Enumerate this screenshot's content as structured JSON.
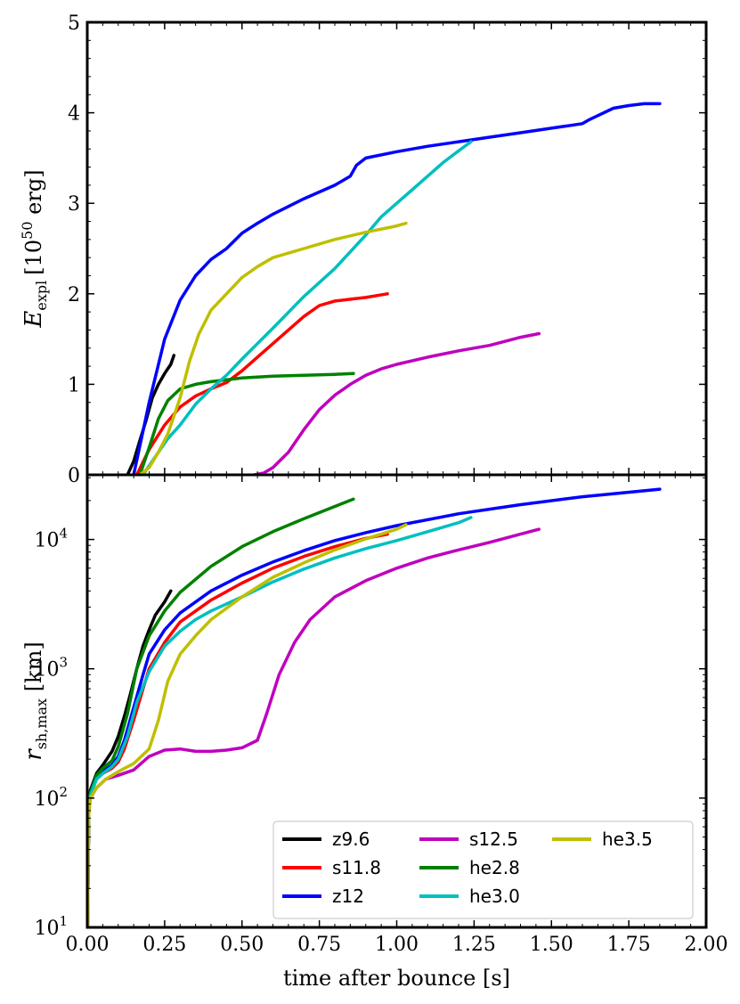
{
  "chart_data": [
    {
      "type": "line",
      "panel": "top",
      "ylabel": "E_expl [10^50 erg]",
      "ylabel_parts": {
        "symbol": "E",
        "subscript": "expl",
        "unit_pre": "[10",
        "unit_exp": "50",
        "unit_post": " erg]"
      },
      "xlim": [
        0,
        2
      ],
      "ylim": [
        0,
        5
      ],
      "yscale": "linear",
      "yticks": [
        "0",
        "1",
        "2",
        "3",
        "4",
        "5"
      ],
      "ytick_values": [
        0,
        1,
        2,
        3,
        4,
        5
      ],
      "series": [
        {
          "name": "z9.6",
          "color": "#000000",
          "x": [
            0.13,
            0.15,
            0.17,
            0.19,
            0.21,
            0.23,
            0.25,
            0.27,
            0.28
          ],
          "y": [
            0.0,
            0.15,
            0.38,
            0.6,
            0.85,
            1.0,
            1.12,
            1.22,
            1.32
          ]
        },
        {
          "name": "s11.8",
          "color": "#ff0000",
          "x": [
            0.16,
            0.2,
            0.25,
            0.3,
            0.35,
            0.4,
            0.45,
            0.5,
            0.55,
            0.6,
            0.65,
            0.7,
            0.75,
            0.8,
            0.85,
            0.9,
            0.97
          ],
          "y": [
            0.0,
            0.28,
            0.55,
            0.75,
            0.87,
            0.95,
            1.02,
            1.15,
            1.3,
            1.45,
            1.6,
            1.75,
            1.87,
            1.92,
            1.94,
            1.96,
            2.0
          ]
        },
        {
          "name": "z12",
          "color": "#0000ff",
          "x": [
            0.15,
            0.2,
            0.25,
            0.3,
            0.35,
            0.4,
            0.45,
            0.5,
            0.55,
            0.6,
            0.7,
            0.8,
            0.85,
            0.87,
            0.9,
            1.0,
            1.1,
            1.2,
            1.3,
            1.4,
            1.5,
            1.6,
            1.62,
            1.7,
            1.75,
            1.8,
            1.85
          ],
          "y": [
            0.0,
            0.8,
            1.5,
            1.93,
            2.2,
            2.38,
            2.5,
            2.67,
            2.78,
            2.88,
            3.05,
            3.2,
            3.3,
            3.42,
            3.5,
            3.57,
            3.63,
            3.68,
            3.73,
            3.78,
            3.83,
            3.88,
            3.92,
            4.05,
            4.08,
            4.1,
            4.1
          ]
        },
        {
          "name": "s12.5",
          "color": "#bf00bf",
          "x": [
            0.54,
            0.57,
            0.6,
            0.65,
            0.7,
            0.75,
            0.8,
            0.85,
            0.9,
            0.95,
            1.0,
            1.1,
            1.2,
            1.3,
            1.4,
            1.46
          ],
          "y": [
            0.0,
            0.02,
            0.08,
            0.25,
            0.5,
            0.72,
            0.88,
            1.0,
            1.1,
            1.17,
            1.22,
            1.3,
            1.37,
            1.43,
            1.52,
            1.56
          ]
        },
        {
          "name": "he2.8",
          "color": "#008000",
          "x": [
            0.17,
            0.2,
            0.23,
            0.26,
            0.3,
            0.35,
            0.4,
            0.5,
            0.6,
            0.7,
            0.8,
            0.86
          ],
          "y": [
            0.0,
            0.3,
            0.62,
            0.82,
            0.95,
            1.0,
            1.03,
            1.07,
            1.09,
            1.1,
            1.11,
            1.12
          ]
        },
        {
          "name": "he3.0",
          "color": "#00bfbf",
          "x": [
            0.18,
            0.22,
            0.26,
            0.3,
            0.35,
            0.4,
            0.45,
            0.5,
            0.55,
            0.6,
            0.7,
            0.8,
            0.9,
            0.95,
            1.0,
            1.05,
            1.1,
            1.15,
            1.2,
            1.24
          ],
          "y": [
            0.0,
            0.2,
            0.4,
            0.55,
            0.78,
            0.95,
            1.1,
            1.28,
            1.45,
            1.62,
            1.97,
            2.28,
            2.65,
            2.85,
            3.0,
            3.15,
            3.3,
            3.45,
            3.58,
            3.68
          ]
        },
        {
          "name": "he3.5",
          "color": "#bfbf00",
          "x": [
            0.17,
            0.2,
            0.23,
            0.26,
            0.3,
            0.33,
            0.36,
            0.4,
            0.45,
            0.5,
            0.55,
            0.6,
            0.7,
            0.8,
            0.9,
            1.0,
            1.03
          ],
          "y": [
            0.0,
            0.08,
            0.25,
            0.45,
            0.85,
            1.25,
            1.55,
            1.82,
            2.0,
            2.18,
            2.3,
            2.4,
            2.5,
            2.6,
            2.68,
            2.75,
            2.78
          ]
        }
      ]
    },
    {
      "type": "line",
      "panel": "bottom",
      "ylabel": "r_sh,max [km]",
      "ylabel_parts": {
        "symbol": "r",
        "subscript": "sh,max",
        "unit": " [km]"
      },
      "xlabel": "time after bounce [s]",
      "xlim": [
        0,
        2
      ],
      "ylim": [
        10,
        31623
      ],
      "yscale": "log",
      "yticks": [
        {
          "value": 10,
          "base": "10",
          "exp": "1"
        },
        {
          "value": 100,
          "base": "10",
          "exp": "2"
        },
        {
          "value": 1000,
          "base": "10",
          "exp": "3"
        },
        {
          "value": 10000,
          "base": "10",
          "exp": "4"
        }
      ],
      "xticks": [
        "0.00",
        "0.25",
        "0.50",
        "0.75",
        "1.00",
        "1.25",
        "1.50",
        "1.75",
        "2.00"
      ],
      "xtick_values": [
        0,
        0.25,
        0.5,
        0.75,
        1.0,
        1.25,
        1.5,
        1.75,
        2.0
      ],
      "series": [
        {
          "name": "z9.6",
          "color": "#000000",
          "x": [
            0.001,
            0.005,
            0.01,
            0.03,
            0.05,
            0.08,
            0.1,
            0.12,
            0.14,
            0.16,
            0.18,
            0.2,
            0.22,
            0.25,
            0.27
          ],
          "y": [
            10,
            80,
            115,
            155,
            180,
            230,
            300,
            430,
            650,
            1000,
            1500,
            2000,
            2600,
            3300,
            4000
          ]
        },
        {
          "name": "s11.8",
          "color": "#ff0000",
          "x": [
            0.001,
            0.005,
            0.01,
            0.03,
            0.05,
            0.08,
            0.1,
            0.12,
            0.15,
            0.18,
            0.2,
            0.25,
            0.3,
            0.4,
            0.5,
            0.6,
            0.7,
            0.8,
            0.9,
            0.97
          ],
          "y": [
            10,
            80,
            110,
            140,
            155,
            170,
            190,
            240,
            400,
            700,
            1000,
            1600,
            2300,
            3400,
            4600,
            6000,
            7400,
            8800,
            10200,
            11000
          ]
        },
        {
          "name": "z12",
          "color": "#0000ff",
          "x": [
            0.001,
            0.005,
            0.01,
            0.03,
            0.05,
            0.08,
            0.1,
            0.12,
            0.15,
            0.18,
            0.2,
            0.25,
            0.3,
            0.4,
            0.5,
            0.6,
            0.7,
            0.8,
            0.9,
            1.0,
            1.2,
            1.4,
            1.6,
            1.8,
            1.85
          ],
          "y": [
            10,
            85,
            110,
            145,
            160,
            180,
            210,
            280,
            500,
            900,
            1300,
            2000,
            2700,
            4000,
            5300,
            6700,
            8200,
            9800,
            11300,
            12800,
            15800,
            18600,
            21400,
            23800,
            24500
          ]
        },
        {
          "name": "s12.5",
          "color": "#bf00bf",
          "x": [
            0.001,
            0.005,
            0.01,
            0.03,
            0.06,
            0.1,
            0.15,
            0.2,
            0.25,
            0.3,
            0.35,
            0.4,
            0.45,
            0.5,
            0.55,
            0.58,
            0.62,
            0.67,
            0.72,
            0.8,
            0.9,
            1.0,
            1.1,
            1.2,
            1.3,
            1.4,
            1.46
          ],
          "y": [
            10,
            75,
            100,
            120,
            140,
            150,
            165,
            210,
            235,
            240,
            230,
            230,
            235,
            245,
            280,
            450,
            900,
            1600,
            2400,
            3600,
            4800,
            6000,
            7200,
            8300,
            9500,
            11000,
            12000
          ]
        },
        {
          "name": "he2.8",
          "color": "#008000",
          "x": [
            0.001,
            0.005,
            0.01,
            0.03,
            0.05,
            0.08,
            0.1,
            0.13,
            0.16,
            0.2,
            0.25,
            0.3,
            0.4,
            0.5,
            0.6,
            0.7,
            0.8,
            0.86
          ],
          "y": [
            10,
            80,
            110,
            150,
            170,
            195,
            250,
            450,
            1000,
            1800,
            2800,
            3900,
            6200,
            8800,
            11500,
            14500,
            18000,
            20500
          ]
        },
        {
          "name": "he3.0",
          "color": "#00bfbf",
          "x": [
            0.001,
            0.005,
            0.01,
            0.03,
            0.05,
            0.08,
            0.1,
            0.13,
            0.16,
            0.2,
            0.25,
            0.3,
            0.35,
            0.4,
            0.5,
            0.6,
            0.7,
            0.8,
            0.9,
            1.0,
            1.1,
            1.2,
            1.24
          ],
          "y": [
            10,
            80,
            105,
            140,
            155,
            175,
            200,
            300,
            550,
            950,
            1500,
            1950,
            2400,
            2800,
            3600,
            4700,
            5900,
            7200,
            8500,
            9800,
            11500,
            13500,
            14800
          ]
        },
        {
          "name": "he3.5",
          "color": "#bfbf00",
          "x": [
            0.001,
            0.005,
            0.01,
            0.03,
            0.06,
            0.1,
            0.15,
            0.2,
            0.23,
            0.26,
            0.3,
            0.35,
            0.4,
            0.5,
            0.6,
            0.7,
            0.8,
            0.9,
            1.0,
            1.03
          ],
          "y": [
            10,
            75,
            100,
            120,
            140,
            160,
            185,
            240,
            400,
            800,
            1300,
            1800,
            2400,
            3600,
            5100,
            6600,
            8300,
            10100,
            12000,
            13000
          ]
        }
      ],
      "legend": {
        "placement": "lower-right",
        "columns": 3,
        "entries": [
          {
            "name": "z9.6",
            "color": "#000000"
          },
          {
            "name": "s11.8",
            "color": "#ff0000"
          },
          {
            "name": "z12",
            "color": "#0000ff"
          },
          {
            "name": "s12.5",
            "color": "#bf00bf"
          },
          {
            "name": "he2.8",
            "color": "#008000"
          },
          {
            "name": "he3.0",
            "color": "#00bfbf"
          },
          {
            "name": "he3.5",
            "color": "#bfbf00"
          }
        ]
      }
    }
  ]
}
